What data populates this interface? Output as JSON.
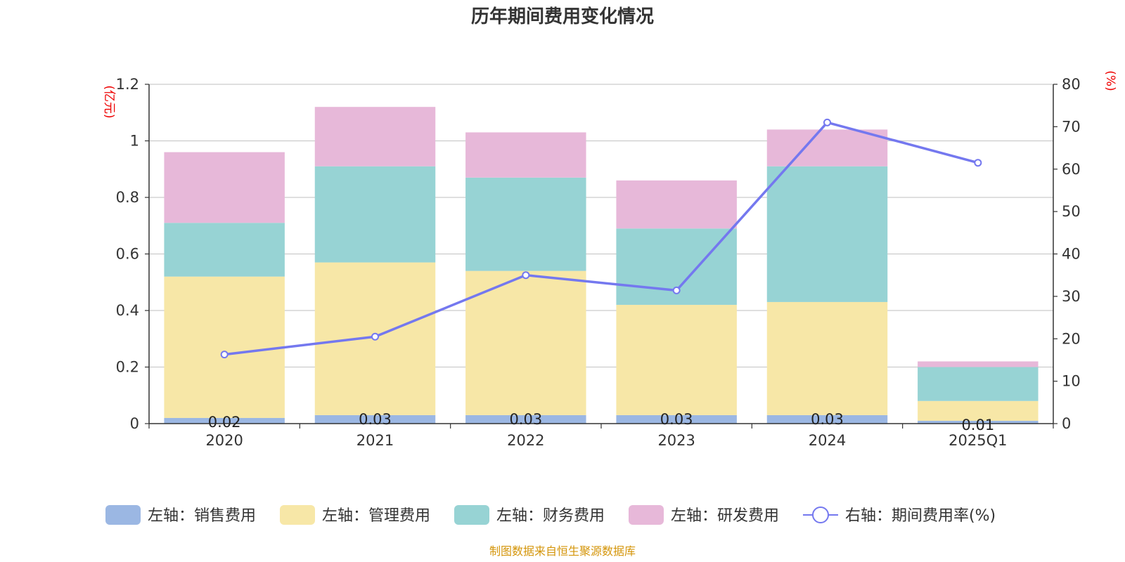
{
  "chart_data": {
    "type": "bar",
    "title": "历年期间费用变化情况",
    "categories": [
      "2020",
      "2021",
      "2022",
      "2023",
      "2024",
      "2025Q1"
    ],
    "left_axis": {
      "unit": "(亿元)",
      "ylim": [
        0,
        1.2
      ],
      "ticks": [
        "0",
        "0.2",
        "0.4",
        "0.6",
        "0.8",
        "1",
        "1.2"
      ]
    },
    "right_axis": {
      "unit": "(%)",
      "ylim": [
        0,
        80
      ],
      "ticks": [
        "0",
        "10",
        "20",
        "30",
        "40",
        "50",
        "60",
        "70",
        "80"
      ]
    },
    "series": [
      {
        "name": "左轴：销售费用",
        "type": "bar",
        "axis": "left",
        "color": "#9bb7e3",
        "values": [
          0.02,
          0.03,
          0.03,
          0.03,
          0.03,
          0.01
        ],
        "labels": [
          "0.02",
          "0.03",
          "0.03",
          "0.03",
          "0.03",
          "0.01"
        ]
      },
      {
        "name": "左轴：管理费用",
        "type": "bar",
        "axis": "left",
        "color": "#f7e7a7",
        "values": [
          0.5,
          0.54,
          0.51,
          0.39,
          0.4,
          0.07
        ]
      },
      {
        "name": "左轴：财务费用",
        "type": "bar",
        "axis": "left",
        "color": "#97d3d4",
        "values": [
          0.19,
          0.34,
          0.33,
          0.27,
          0.48,
          0.12
        ]
      },
      {
        "name": "左轴：研发费用",
        "type": "bar",
        "axis": "left",
        "color": "#e7b8d9",
        "values": [
          0.25,
          0.21,
          0.16,
          0.17,
          0.13,
          0.02
        ]
      },
      {
        "name": "右轴：期间费用率(%)",
        "type": "line",
        "axis": "right",
        "color": "#7478ef",
        "values": [
          16.3,
          20.5,
          35.0,
          31.4,
          71.0,
          61.5
        ]
      }
    ],
    "source": "制图数据来自恒生聚源数据库"
  }
}
